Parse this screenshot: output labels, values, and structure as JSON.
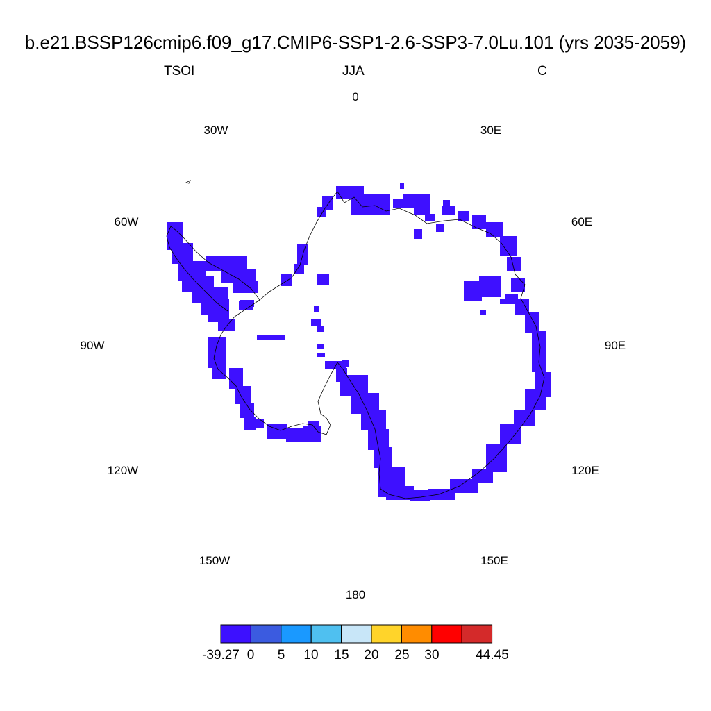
{
  "header": {
    "title": "b.e21.BSSP126cmip6.f09_g17.CMIP6-SSP1-2.6-SSP3-7.0Lu.101 (yrs 2035-2059)",
    "variable": "TSOI",
    "season": "JJA",
    "units": "C"
  },
  "map": {
    "projection": "south-polar-stereographic",
    "fill_color": "#3e10ff",
    "coast_color": "#000000",
    "longitude_labels": [
      "0",
      "30E",
      "60E",
      "90E",
      "120E",
      "150E",
      "180",
      "150W",
      "120W",
      "90W",
      "60W",
      "30W"
    ]
  },
  "colorbar": {
    "labels": [
      "-39.27",
      "0",
      "5",
      "10",
      "15",
      "20",
      "25",
      "30",
      "44.45"
    ],
    "colors": [
      "#3d10ff",
      "#3b5be0",
      "#1a99ff",
      "#4fc0f0",
      "#c8e6f8",
      "#ffd42a",
      "#ff8c00",
      "#ff0000",
      "#d42a2a"
    ]
  }
}
